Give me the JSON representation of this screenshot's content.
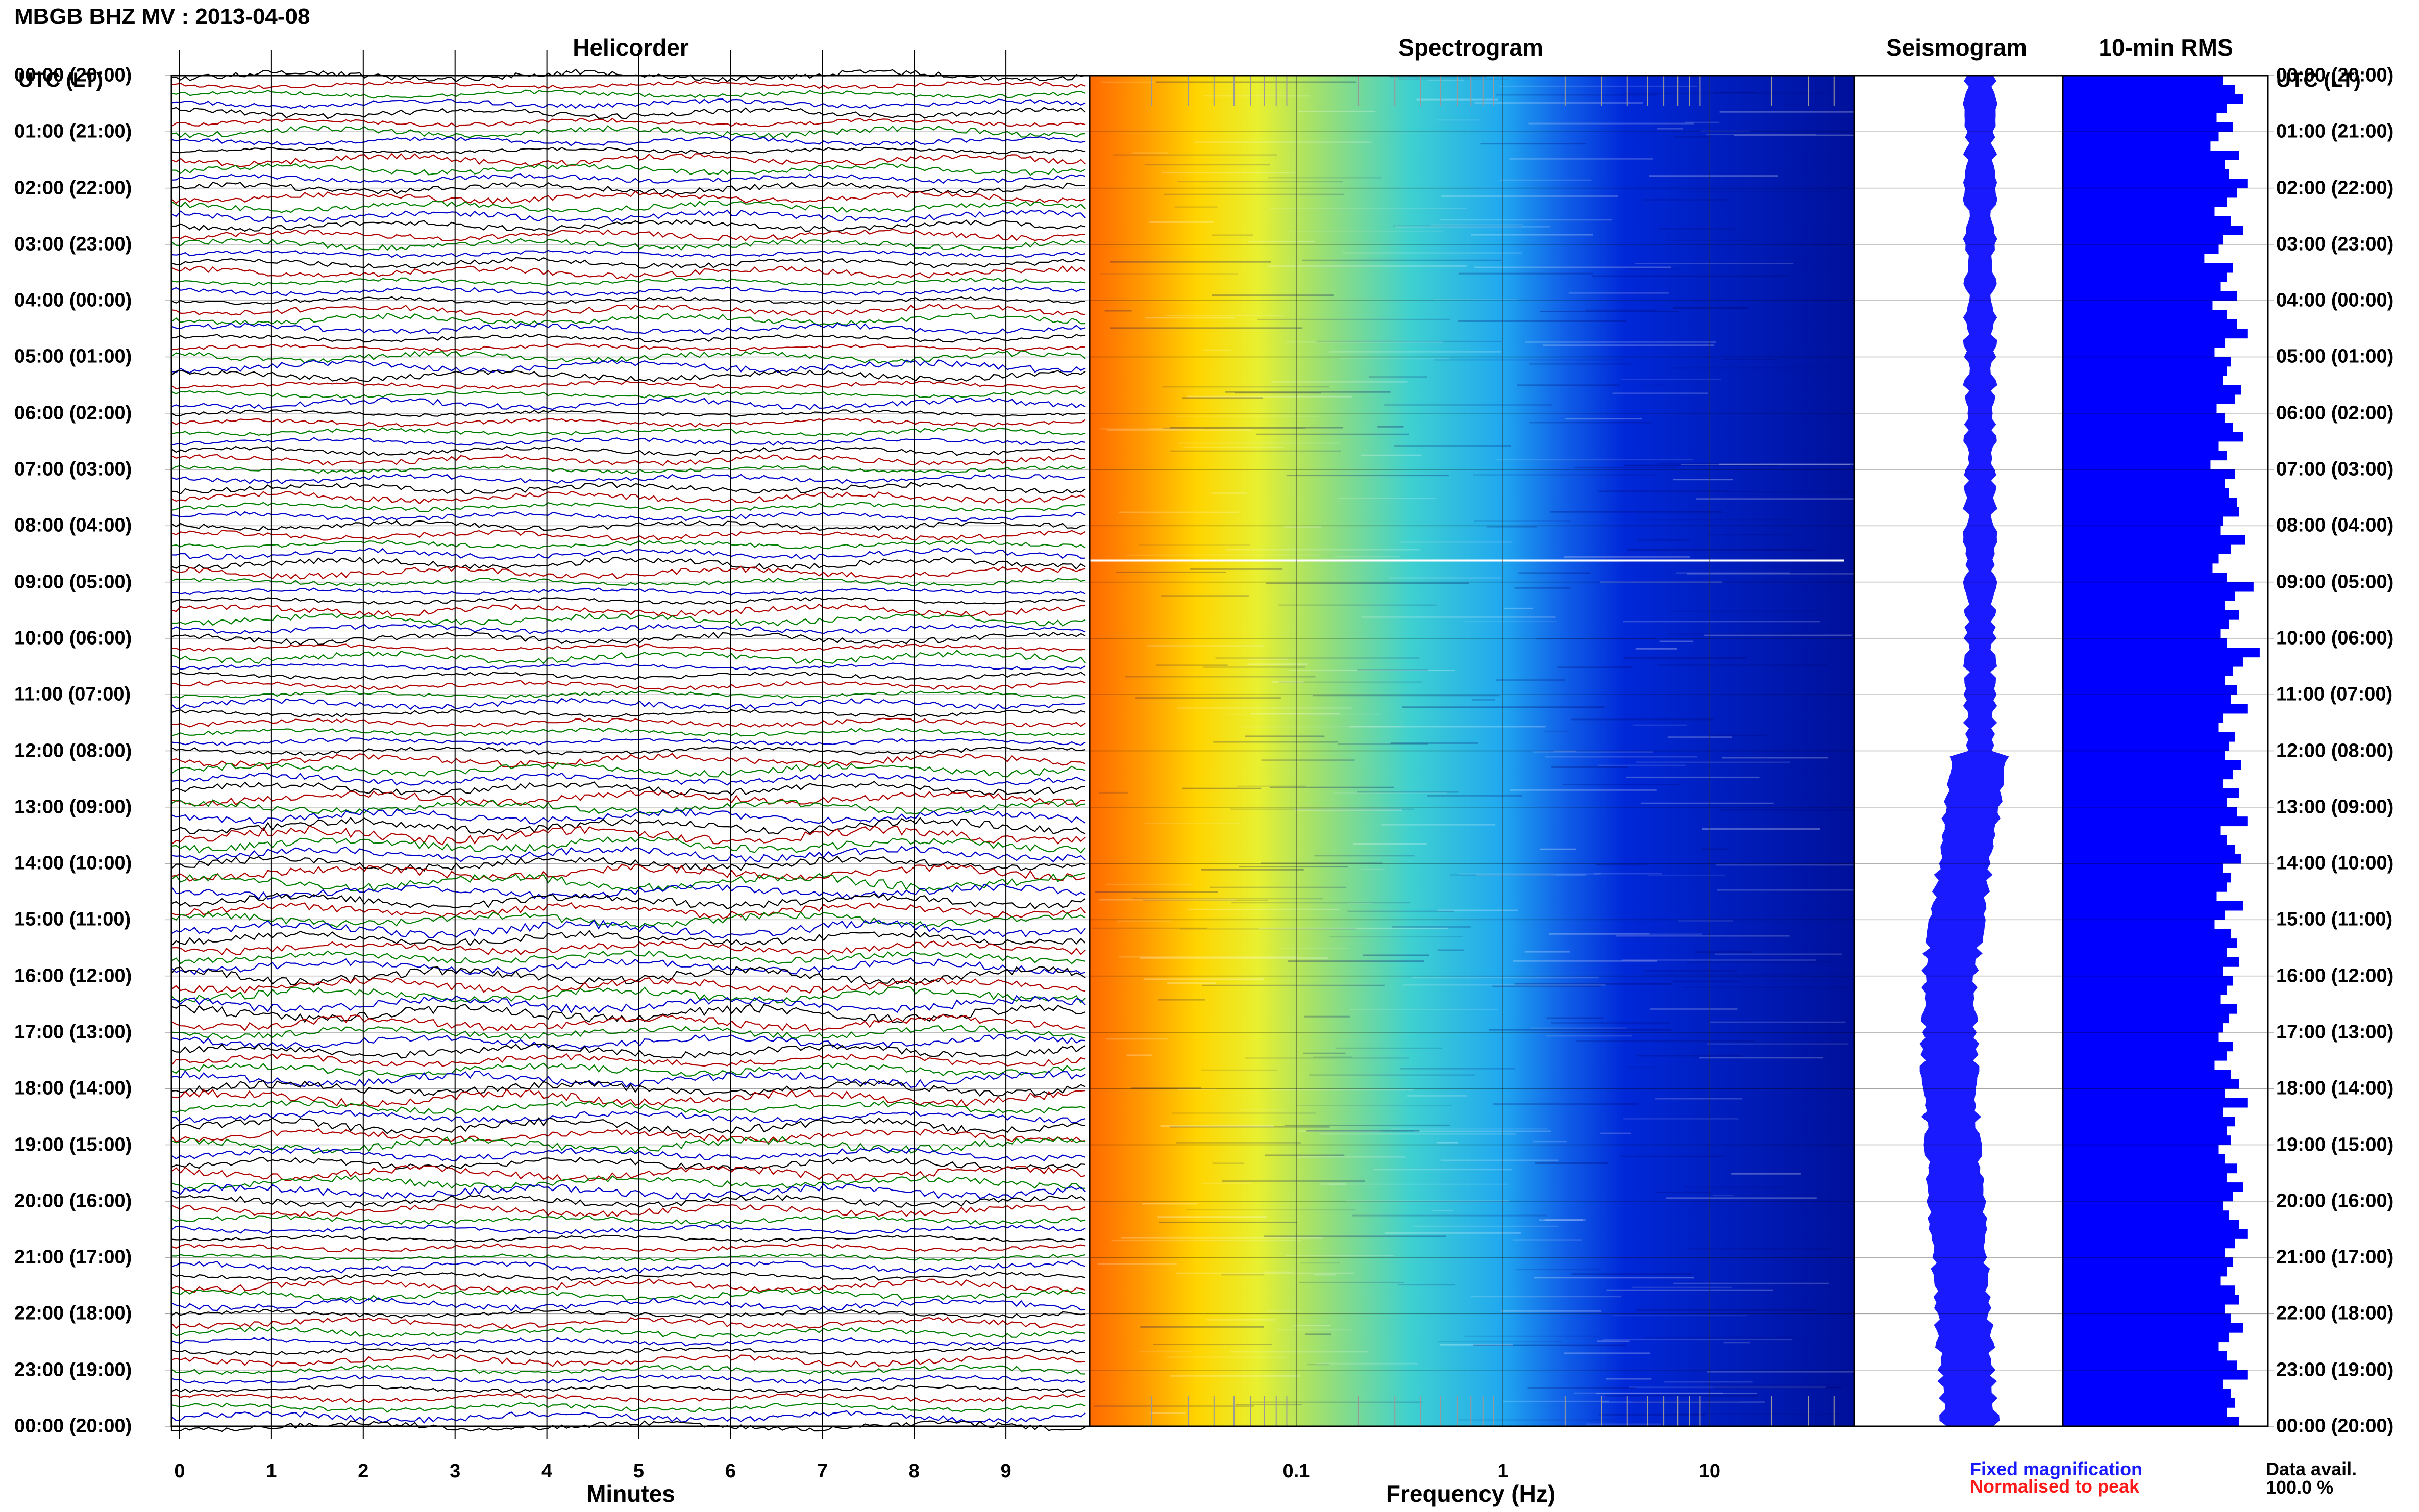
{
  "title": "MBGB BHZ MV : 2013-04-08",
  "panels": {
    "helicorder": "Helicorder",
    "spectrogram": "Spectrogram",
    "seismogram": "Seismogram",
    "rms": "10-min RMS"
  },
  "utc_header": "UTC (LT)",
  "time_labels": [
    "00:00 (20:00)",
    "01:00 (21:00)",
    "02:00 (22:00)",
    "03:00 (23:00)",
    "04:00 (00:00)",
    "05:00 (01:00)",
    "06:00 (02:00)",
    "07:00 (03:00)",
    "08:00 (04:00)",
    "09:00 (05:00)",
    "10:00 (06:00)",
    "11:00 (07:00)",
    "12:00 (08:00)",
    "13:00 (09:00)",
    "14:00 (10:00)",
    "15:00 (11:00)",
    "16:00 (12:00)",
    "17:00 (13:00)",
    "18:00 (14:00)",
    "19:00 (15:00)",
    "20:00 (16:00)",
    "21:00 (17:00)",
    "22:00 (18:00)",
    "23:00 (19:00)",
    "00:00 (20:00)"
  ],
  "legend": {
    "fixed": "Fixed magnification",
    "normalised": "Normalised to peak",
    "availability_label": "Data avail.",
    "availability_value": "100.0 %"
  },
  "colors": {
    "trace_cycle": [
      "#000000",
      "#b00000",
      "#008000",
      "#0000cc"
    ],
    "seismogram": "#1a1aff",
    "rms_bar": "#0000ff"
  },
  "chart_data": [
    {
      "type": "line",
      "panel": "Helicorder",
      "xlabel": "Minutes",
      "x_ticks": [
        "0",
        "1",
        "2",
        "3",
        "4",
        "5",
        "6",
        "7",
        "8",
        "9"
      ],
      "xlim": [
        0,
        10
      ],
      "rows_per_hour": 6,
      "hours": 24
    },
    {
      "type": "heatmap",
      "panel": "Spectrogram",
      "xlabel": "Frequency (Hz)",
      "x_scale": "log",
      "x_ticks": [
        "0.1",
        "1",
        "10"
      ],
      "xlim": [
        0.01,
        50
      ]
    },
    {
      "type": "line",
      "panel": "Seismogram",
      "description_series": "envelope offset over 24 h"
    },
    {
      "type": "bar",
      "panel": "10-min RMS",
      "bins": 144,
      "values": [
        0.78,
        0.84,
        0.88,
        0.8,
        0.75,
        0.83,
        0.76,
        0.72,
        0.86,
        0.79,
        0.81,
        0.9,
        0.85,
        0.8,
        0.74,
        0.82,
        0.88,
        0.78,
        0.76,
        0.69,
        0.83,
        0.8,
        0.77,
        0.85,
        0.73,
        0.8,
        0.85,
        0.9,
        0.79,
        0.74,
        0.82,
        0.8,
        0.78,
        0.87,
        0.84,
        0.75,
        0.79,
        0.83,
        0.88,
        0.76,
        0.8,
        0.72,
        0.84,
        0.79,
        0.81,
        0.85,
        0.86,
        0.78,
        0.77,
        0.89,
        0.82,
        0.76,
        0.73,
        0.8,
        0.93,
        0.84,
        0.79,
        0.86,
        0.81,
        0.77,
        0.8,
        0.96,
        0.88,
        0.83,
        0.79,
        0.85,
        0.82,
        0.9,
        0.78,
        0.76,
        0.84,
        0.81,
        0.79,
        0.87,
        0.83,
        0.78,
        0.86,
        0.8,
        0.85,
        0.9,
        0.77,
        0.8,
        0.84,
        0.87,
        0.78,
        0.82,
        0.8,
        0.75,
        0.88,
        0.79,
        0.74,
        0.82,
        0.85,
        0.8,
        0.86,
        0.78,
        0.83,
        0.8,
        0.77,
        0.85,
        0.81,
        0.78,
        0.76,
        0.83,
        0.8,
        0.74,
        0.82,
        0.86,
        0.79,
        0.9,
        0.78,
        0.84,
        0.8,
        0.82,
        0.76,
        0.79,
        0.85,
        0.8,
        0.88,
        0.83,
        0.78,
        0.81,
        0.86,
        0.9,
        0.84,
        0.79,
        0.83,
        0.8,
        0.77,
        0.84,
        0.86,
        0.79,
        0.82,
        0.88,
        0.81,
        0.76,
        0.8,
        0.85,
        0.9,
        0.78,
        0.82,
        0.84,
        0.8,
        0.86
      ]
    }
  ]
}
